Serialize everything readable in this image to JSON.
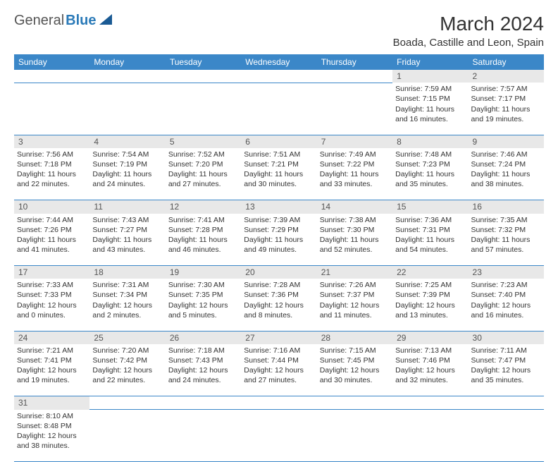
{
  "logo": {
    "text1": "General",
    "text2": "Blue"
  },
  "title": "March 2024",
  "location": "Boada, Castille and Leon, Spain",
  "colors": {
    "header_bg": "#3b87c8",
    "daynum_bg": "#e8e8e8",
    "border": "#3b87c8"
  },
  "weekdays": [
    "Sunday",
    "Monday",
    "Tuesday",
    "Wednesday",
    "Thursday",
    "Friday",
    "Saturday"
  ],
  "weeks": [
    [
      null,
      null,
      null,
      null,
      null,
      {
        "n": "1",
        "sr": "Sunrise: 7:59 AM",
        "ss": "Sunset: 7:15 PM",
        "dl": "Daylight: 11 hours and 16 minutes."
      },
      {
        "n": "2",
        "sr": "Sunrise: 7:57 AM",
        "ss": "Sunset: 7:17 PM",
        "dl": "Daylight: 11 hours and 19 minutes."
      }
    ],
    [
      {
        "n": "3",
        "sr": "Sunrise: 7:56 AM",
        "ss": "Sunset: 7:18 PM",
        "dl": "Daylight: 11 hours and 22 minutes."
      },
      {
        "n": "4",
        "sr": "Sunrise: 7:54 AM",
        "ss": "Sunset: 7:19 PM",
        "dl": "Daylight: 11 hours and 24 minutes."
      },
      {
        "n": "5",
        "sr": "Sunrise: 7:52 AM",
        "ss": "Sunset: 7:20 PM",
        "dl": "Daylight: 11 hours and 27 minutes."
      },
      {
        "n": "6",
        "sr": "Sunrise: 7:51 AM",
        "ss": "Sunset: 7:21 PM",
        "dl": "Daylight: 11 hours and 30 minutes."
      },
      {
        "n": "7",
        "sr": "Sunrise: 7:49 AM",
        "ss": "Sunset: 7:22 PM",
        "dl": "Daylight: 11 hours and 33 minutes."
      },
      {
        "n": "8",
        "sr": "Sunrise: 7:48 AM",
        "ss": "Sunset: 7:23 PM",
        "dl": "Daylight: 11 hours and 35 minutes."
      },
      {
        "n": "9",
        "sr": "Sunrise: 7:46 AM",
        "ss": "Sunset: 7:24 PM",
        "dl": "Daylight: 11 hours and 38 minutes."
      }
    ],
    [
      {
        "n": "10",
        "sr": "Sunrise: 7:44 AM",
        "ss": "Sunset: 7:26 PM",
        "dl": "Daylight: 11 hours and 41 minutes."
      },
      {
        "n": "11",
        "sr": "Sunrise: 7:43 AM",
        "ss": "Sunset: 7:27 PM",
        "dl": "Daylight: 11 hours and 43 minutes."
      },
      {
        "n": "12",
        "sr": "Sunrise: 7:41 AM",
        "ss": "Sunset: 7:28 PM",
        "dl": "Daylight: 11 hours and 46 minutes."
      },
      {
        "n": "13",
        "sr": "Sunrise: 7:39 AM",
        "ss": "Sunset: 7:29 PM",
        "dl": "Daylight: 11 hours and 49 minutes."
      },
      {
        "n": "14",
        "sr": "Sunrise: 7:38 AM",
        "ss": "Sunset: 7:30 PM",
        "dl": "Daylight: 11 hours and 52 minutes."
      },
      {
        "n": "15",
        "sr": "Sunrise: 7:36 AM",
        "ss": "Sunset: 7:31 PM",
        "dl": "Daylight: 11 hours and 54 minutes."
      },
      {
        "n": "16",
        "sr": "Sunrise: 7:35 AM",
        "ss": "Sunset: 7:32 PM",
        "dl": "Daylight: 11 hours and 57 minutes."
      }
    ],
    [
      {
        "n": "17",
        "sr": "Sunrise: 7:33 AM",
        "ss": "Sunset: 7:33 PM",
        "dl": "Daylight: 12 hours and 0 minutes."
      },
      {
        "n": "18",
        "sr": "Sunrise: 7:31 AM",
        "ss": "Sunset: 7:34 PM",
        "dl": "Daylight: 12 hours and 2 minutes."
      },
      {
        "n": "19",
        "sr": "Sunrise: 7:30 AM",
        "ss": "Sunset: 7:35 PM",
        "dl": "Daylight: 12 hours and 5 minutes."
      },
      {
        "n": "20",
        "sr": "Sunrise: 7:28 AM",
        "ss": "Sunset: 7:36 PM",
        "dl": "Daylight: 12 hours and 8 minutes."
      },
      {
        "n": "21",
        "sr": "Sunrise: 7:26 AM",
        "ss": "Sunset: 7:37 PM",
        "dl": "Daylight: 12 hours and 11 minutes."
      },
      {
        "n": "22",
        "sr": "Sunrise: 7:25 AM",
        "ss": "Sunset: 7:39 PM",
        "dl": "Daylight: 12 hours and 13 minutes."
      },
      {
        "n": "23",
        "sr": "Sunrise: 7:23 AM",
        "ss": "Sunset: 7:40 PM",
        "dl": "Daylight: 12 hours and 16 minutes."
      }
    ],
    [
      {
        "n": "24",
        "sr": "Sunrise: 7:21 AM",
        "ss": "Sunset: 7:41 PM",
        "dl": "Daylight: 12 hours and 19 minutes."
      },
      {
        "n": "25",
        "sr": "Sunrise: 7:20 AM",
        "ss": "Sunset: 7:42 PM",
        "dl": "Daylight: 12 hours and 22 minutes."
      },
      {
        "n": "26",
        "sr": "Sunrise: 7:18 AM",
        "ss": "Sunset: 7:43 PM",
        "dl": "Daylight: 12 hours and 24 minutes."
      },
      {
        "n": "27",
        "sr": "Sunrise: 7:16 AM",
        "ss": "Sunset: 7:44 PM",
        "dl": "Daylight: 12 hours and 27 minutes."
      },
      {
        "n": "28",
        "sr": "Sunrise: 7:15 AM",
        "ss": "Sunset: 7:45 PM",
        "dl": "Daylight: 12 hours and 30 minutes."
      },
      {
        "n": "29",
        "sr": "Sunrise: 7:13 AM",
        "ss": "Sunset: 7:46 PM",
        "dl": "Daylight: 12 hours and 32 minutes."
      },
      {
        "n": "30",
        "sr": "Sunrise: 7:11 AM",
        "ss": "Sunset: 7:47 PM",
        "dl": "Daylight: 12 hours and 35 minutes."
      }
    ],
    [
      {
        "n": "31",
        "sr": "Sunrise: 8:10 AM",
        "ss": "Sunset: 8:48 PM",
        "dl": "Daylight: 12 hours and 38 minutes."
      },
      null,
      null,
      null,
      null,
      null,
      null
    ]
  ]
}
